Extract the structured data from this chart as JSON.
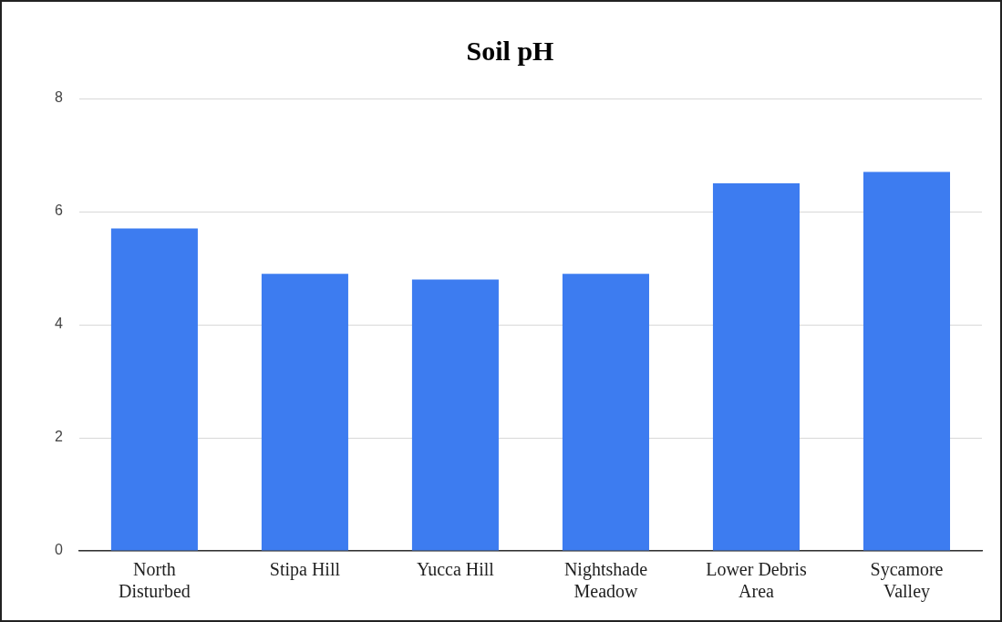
{
  "chart_data": {
    "type": "bar",
    "title": "Soil pH",
    "categories": [
      "North Disturbed",
      "Stipa Hill",
      "Yucca Hill",
      "Nightshade Meadow",
      "Lower Debris Area",
      "Sycamore Valley"
    ],
    "values": [
      5.7,
      4.9,
      4.8,
      4.9,
      6.5,
      6.7
    ],
    "color": "#3d7cf0",
    "ylim": [
      0,
      8
    ],
    "yticks": [
      0,
      2,
      4,
      6,
      8
    ],
    "grid": "y"
  }
}
